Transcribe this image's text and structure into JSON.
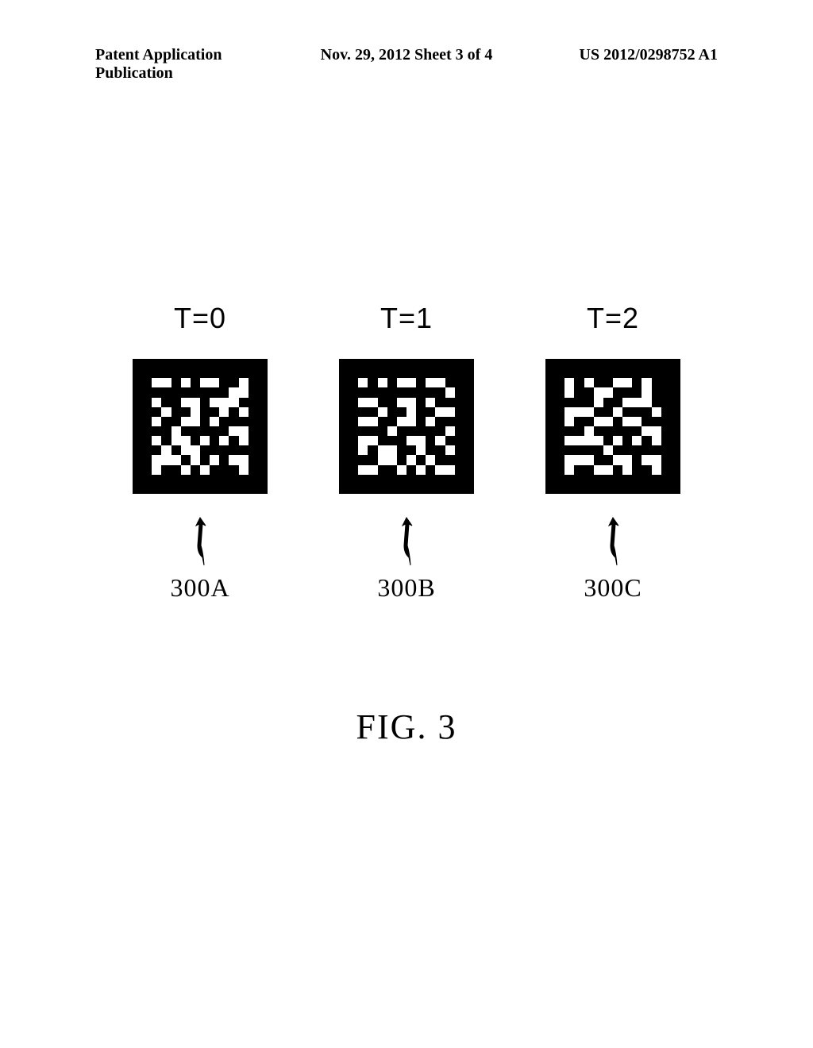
{
  "header": {
    "left": "Patent Application Publication",
    "center": "Nov. 29, 2012  Sheet 3 of 4",
    "right": "US 2012/0298752 A1"
  },
  "figures": [
    {
      "time_label": "T=0",
      "ref_label": "300A",
      "pattern": [
        "11111111111111",
        "11111111111111",
        "11001010011011",
        "11111111110011",
        "11011001000111",
        "11101101101011",
        "11011001011111",
        "11110111110011",
        "11010010101011",
        "11101001111111",
        "11000101010011",
        "11011010111011",
        "11111111111111",
        "11111111111111"
      ]
    },
    {
      "time_label": "T=1",
      "ref_label": "300B",
      "pattern": [
        "11111111111111",
        "11111111111111",
        "11010100100111",
        "11111111111011",
        "11001100101111",
        "11110110110011",
        "11001100101111",
        "11111011111011",
        "11001110010111",
        "11010011011011",
        "11110010101111",
        "11001101010011",
        "11111111111111",
        "11111111111111"
      ]
    },
    {
      "time_label": "T=2",
      "ref_label": "300C",
      "pattern": [
        "11111111111111",
        "11111111111111",
        "11010110010111",
        "11011001110111",
        "11111011000111",
        "11000110111011",
        "11011001001111",
        "11110111110011",
        "11000010101011",
        "11111101111111",
        "11000110010011",
        "11011001011011",
        "11111111111111",
        "11111111111111"
      ]
    }
  ],
  "caption": "FIG. 3",
  "colors": {
    "background": "#ffffff",
    "foreground": "#000000"
  }
}
